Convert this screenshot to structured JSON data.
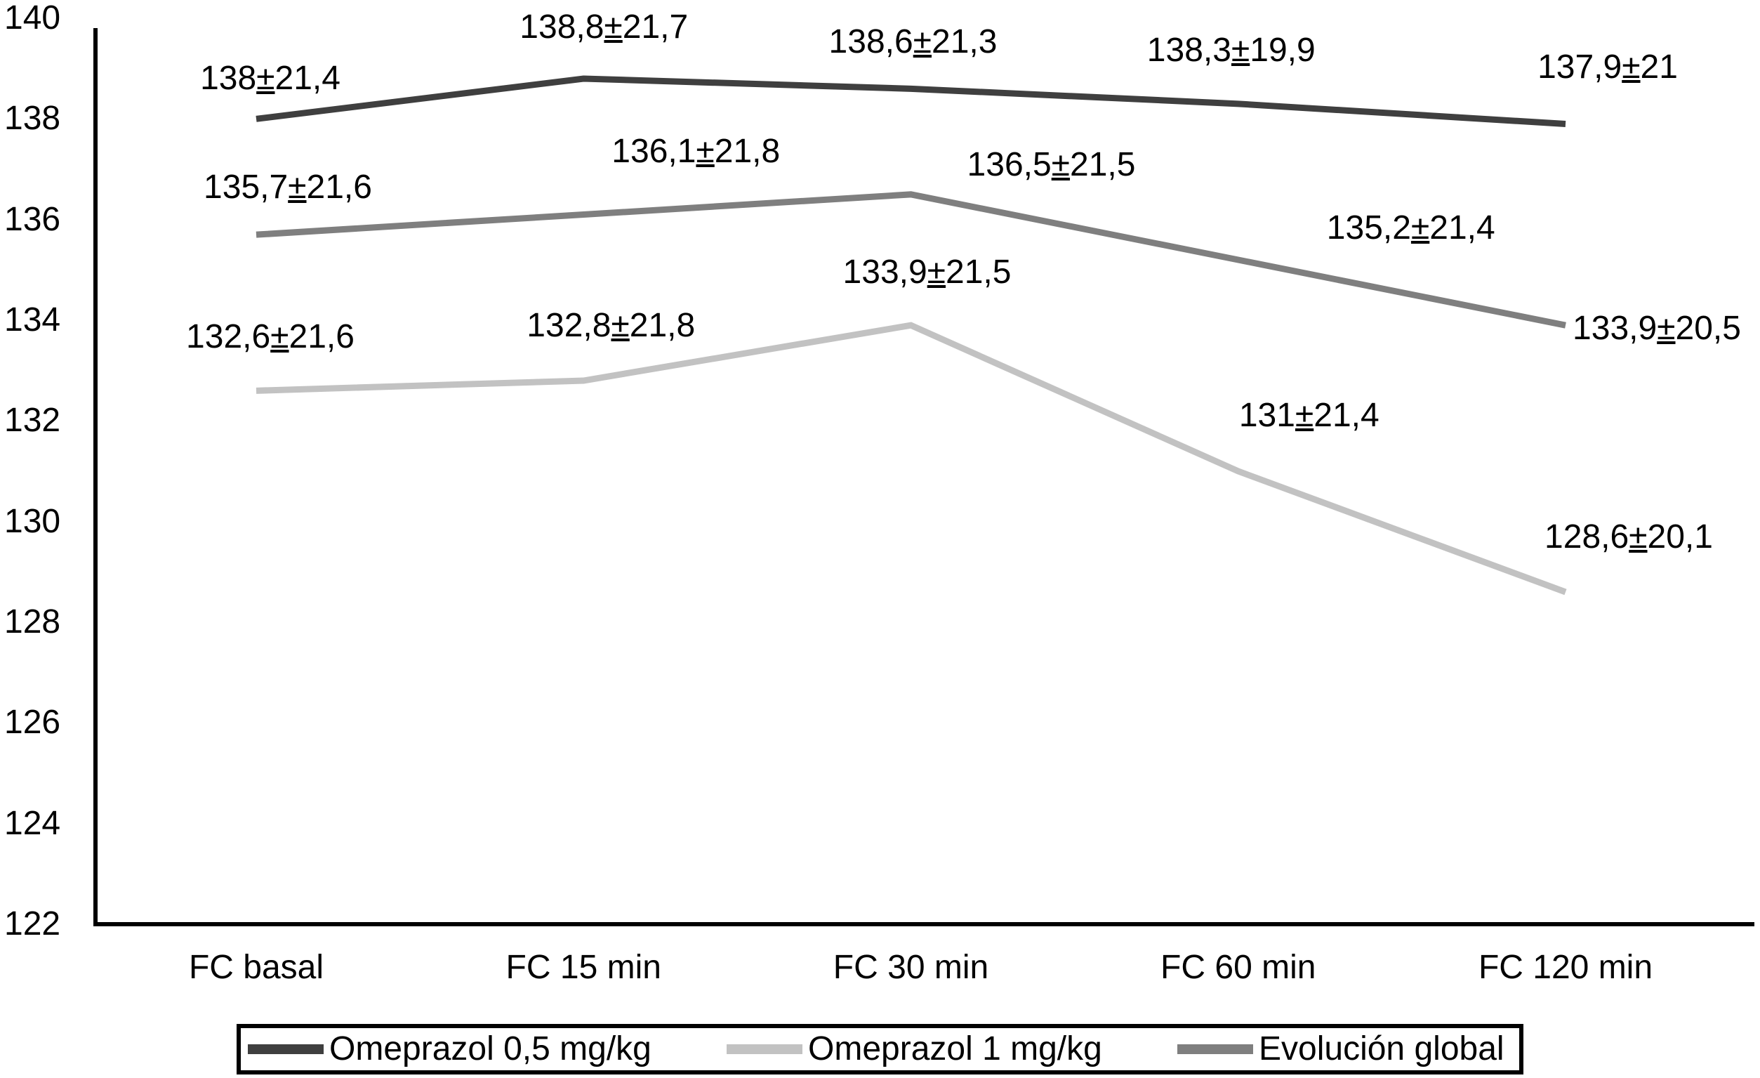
{
  "chart_data": {
    "type": "line",
    "title": "",
    "xlabel": "",
    "ylabel": "",
    "categories": [
      "FC basal",
      "FC 15 min",
      "FC 30 min",
      "FC 60 min",
      "FC 120 min"
    ],
    "series": [
      {
        "name": "Omeprazol 0,5 mg/kg",
        "color": "#3f3f3f",
        "values": [
          138,
          138.8,
          138.6,
          138.3,
          137.9
        ],
        "point_labels": [
          "138±21,4",
          "138,8±21,7",
          "138,6±21,3",
          "138,3±19,9",
          "137,9±21"
        ]
      },
      {
        "name": "Omeprazol 1 mg/kg",
        "color": "#c2c2c2",
        "values": [
          132.6,
          132.8,
          133.9,
          131,
          128.6
        ],
        "point_labels": [
          "132,6±21,6",
          "132,8±21,8",
          "133,9±21,5",
          "131±21,4",
          "128,6±20,1"
        ]
      },
      {
        "name": "Evolución global",
        "color": "#7f7f7f",
        "values": [
          135.7,
          136.1,
          136.5,
          135.2,
          133.9
        ],
        "point_labels": [
          "135,7±21,6",
          "136,1±21,8",
          "136,5±21,5",
          "135,2±21,4",
          "133,9±20,5"
        ]
      }
    ],
    "ylim": [
      122,
      140
    ],
    "ytick_step": 2,
    "yticks": [
      140,
      138,
      136,
      134,
      132,
      130,
      128,
      126,
      124,
      122
    ],
    "grid": false,
    "axis_color": "#000000",
    "legend_position": "bottom"
  }
}
